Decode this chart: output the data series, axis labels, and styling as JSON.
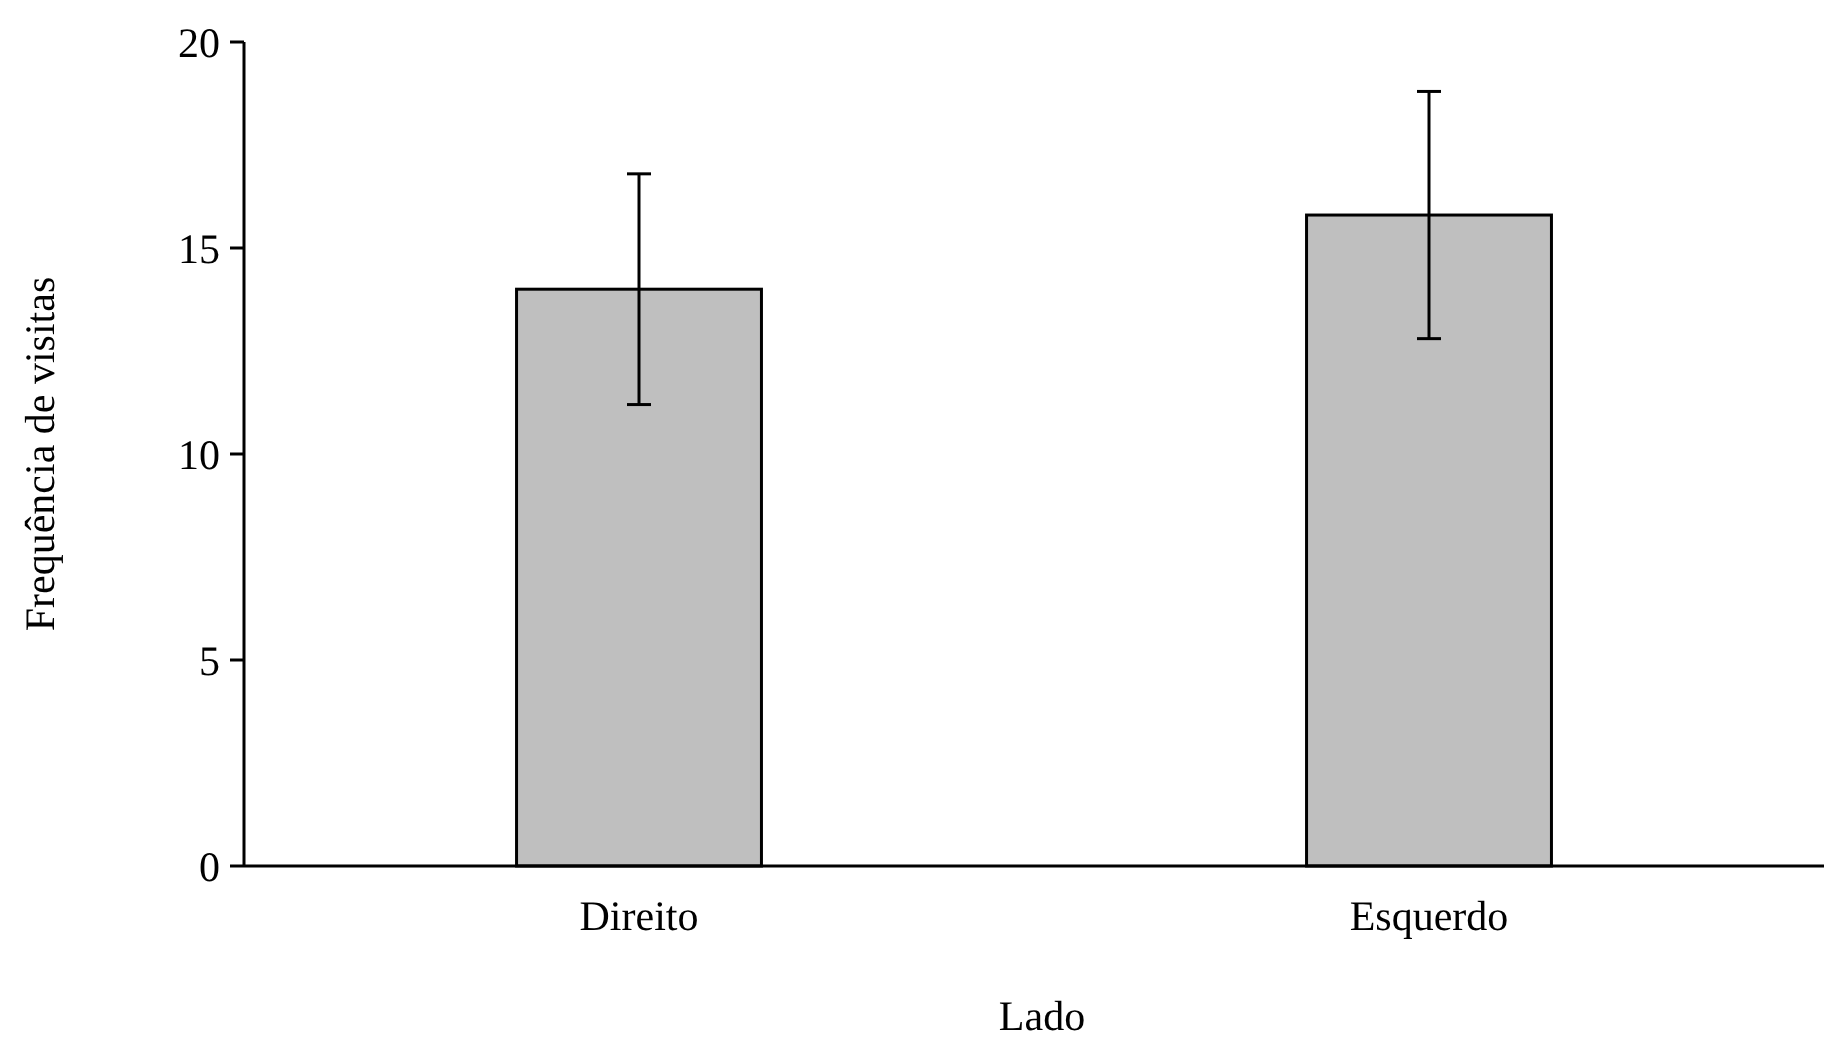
{
  "chart_data": {
    "type": "bar",
    "xlabel": "Lado",
    "ylabel": "Frequência de visitas",
    "categories": [
      "Direito",
      "Esquerdo"
    ],
    "values": [
      14,
      15.8
    ],
    "errors": [
      2.8,
      3
    ],
    "color": "#bfbfbf",
    "ylim": [
      0,
      20
    ],
    "yticks": [
      0,
      5,
      10,
      15,
      20
    ],
    "grid": false
  }
}
